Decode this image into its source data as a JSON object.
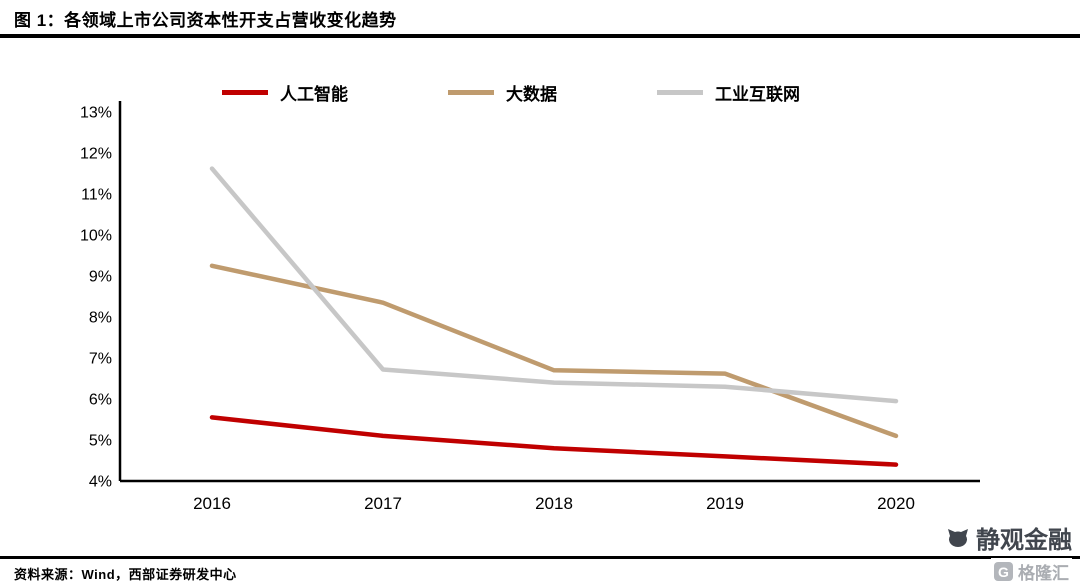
{
  "header": {
    "title": "图 1：各领域上市公司资本性开支占营收变化趋势"
  },
  "footer": {
    "source": "资料来源：Wind，西部证券研发中心"
  },
  "watermark": {
    "brand": "静观金融",
    "logo_letter": "G",
    "logo_text": "格隆汇"
  },
  "chart_data": {
    "type": "line",
    "title": "图 1：各领域上市公司资本性开支占营收变化趋势",
    "x": [
      "2016",
      "2017",
      "2018",
      "2019",
      "2020"
    ],
    "series": [
      {
        "name": "人工智能",
        "color": "#c00000",
        "values": [
          5.55,
          5.1,
          4.8,
          4.6,
          4.4
        ]
      },
      {
        "name": "大数据",
        "color": "#bf9b6e",
        "values": [
          9.25,
          8.35,
          6.7,
          6.62,
          5.1
        ]
      },
      {
        "name": "工业互联网",
        "color": "#c7c7c7",
        "values": [
          11.62,
          6.72,
          6.4,
          6.3,
          5.95
        ]
      }
    ],
    "ylim": [
      4,
      13
    ],
    "yticks": [
      "4%",
      "5%",
      "6%",
      "7%",
      "8%",
      "9%",
      "10%",
      "11%",
      "12%",
      "13%"
    ],
    "xlabel": "",
    "ylabel": "",
    "grid": false,
    "legend_position": "top",
    "axis_color": "#000000"
  }
}
